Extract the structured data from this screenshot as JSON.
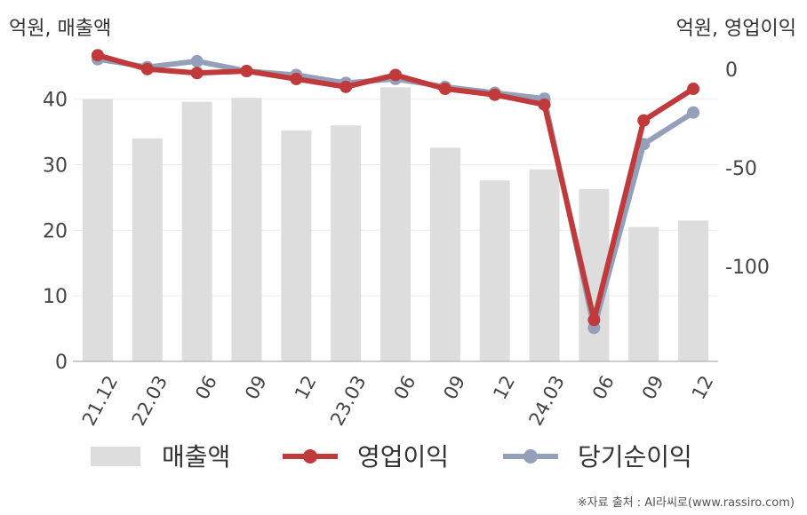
{
  "chart_data": {
    "type": "bar+line",
    "left_axis_unit": "억원, 매출액",
    "right_axis_unit": "억원, 영업이익",
    "categories": [
      "21.12",
      "22.03",
      "06",
      "09",
      "12",
      "23.03",
      "06",
      "09",
      "12",
      "24.03",
      "06",
      "09",
      "12"
    ],
    "left_axis": {
      "ylim": [
        0,
        47
      ],
      "ticks": [
        0,
        10,
        20,
        30,
        40
      ]
    },
    "right_axis": {
      "ylim": [
        -148,
        8
      ],
      "ticks": [
        0,
        -50,
        -100
      ]
    },
    "series": [
      {
        "name": "매출액",
        "type": "bar",
        "axis": "left",
        "color": "#dddddd",
        "values": [
          40.0,
          34.0,
          39.6,
          40.2,
          35.2,
          36.0,
          41.8,
          32.6,
          27.6,
          29.3,
          26.3,
          20.5,
          21.5
        ]
      },
      {
        "name": "영업이익",
        "type": "line",
        "axis": "right",
        "color": "#c0393b",
        "values": [
          7,
          0,
          -2,
          -1,
          -5,
          -9,
          -3,
          -10,
          -13,
          -18,
          -127,
          -26,
          -10
        ]
      },
      {
        "name": "당기순이익",
        "type": "line",
        "axis": "right",
        "color": "#94a0ba",
        "values": [
          5,
          1,
          4,
          -1,
          -3,
          -7,
          -5,
          -9,
          -12,
          -15,
          -131,
          -38,
          -22
        ]
      }
    ],
    "legend_position": "bottom",
    "grid": true
  },
  "source": "※자료 출처 : AI라씨로(www.rassiro.com)"
}
